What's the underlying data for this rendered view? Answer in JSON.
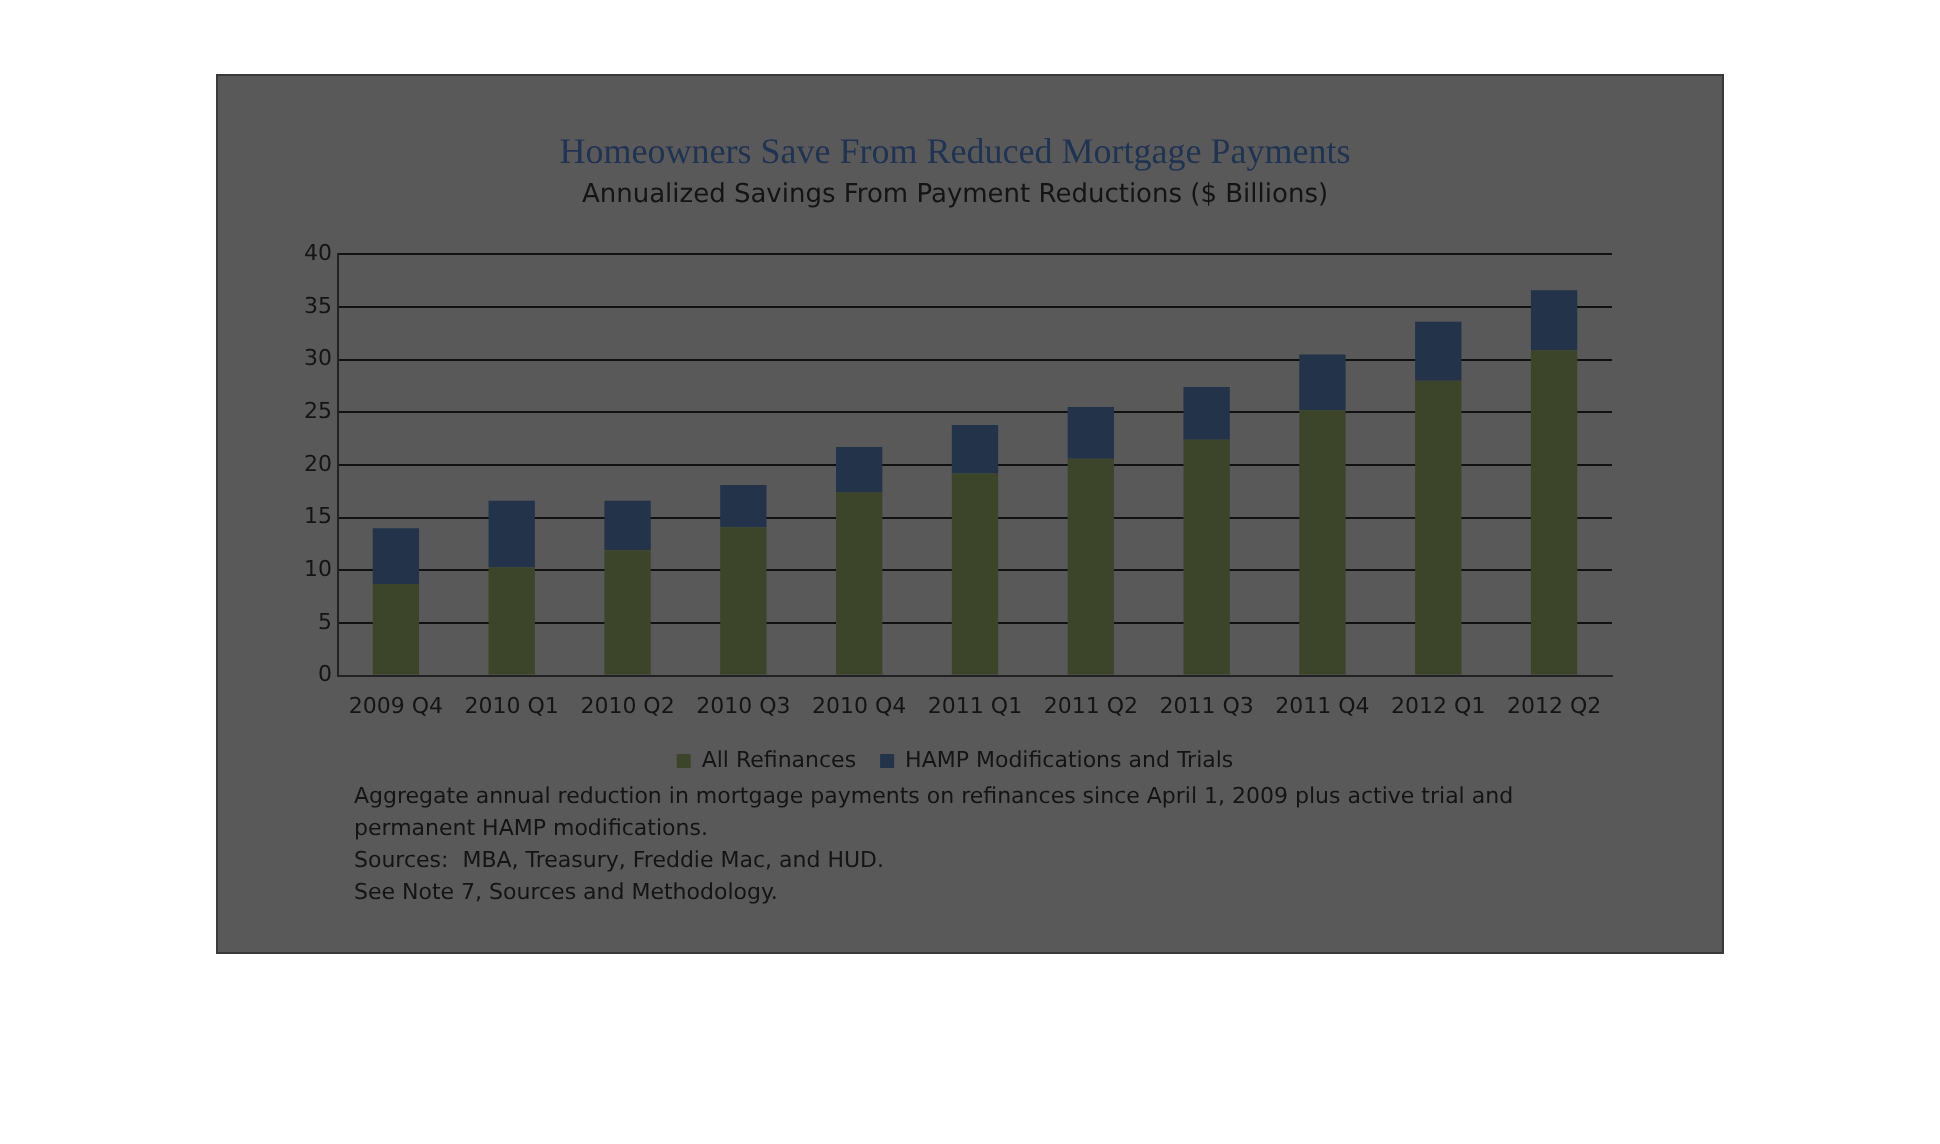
{
  "chart_data": {
    "type": "bar",
    "title": "Homeowners Save From Reduced Mortgage Payments",
    "subtitle": "Annualized Savings From Payment Reductions ($ Billions)",
    "categories": [
      "2009 Q4",
      "2010 Q1",
      "2010 Q2",
      "2010 Q3",
      "2010 Q4",
      "2011 Q1",
      "2011 Q2",
      "2011 Q3",
      "2011 Q4",
      "2012 Q1",
      "2012 Q2"
    ],
    "series": [
      {
        "name": "All Refinances",
        "color": "#3c4529",
        "values": [
          8.7,
          10.3,
          11.9,
          14.1,
          17.4,
          19.2,
          20.6,
          22.4,
          25.2,
          28.0,
          30.9
        ]
      },
      {
        "name": "HAMP Modifications and Trials",
        "color": "#22334a",
        "values": [
          5.3,
          6.3,
          4.7,
          4.0,
          4.3,
          4.6,
          4.9,
          5.0,
          5.3,
          5.6,
          5.7
        ]
      }
    ],
    "stacked": true,
    "ylim": [
      0,
      40
    ],
    "yticks": [
      0,
      5,
      10,
      15,
      20,
      25,
      30,
      35,
      40
    ],
    "grid": "y",
    "legend": "bottom",
    "annotations": [
      "Aggregate annual reduction in mortgage payments on refinances since April 1, 2009 plus active trial and permanent HAMP modifications.",
      "Sources:  MBA, Treasury, Freddie Mac, and HUD.",
      "See Note 7, Sources and Methodology."
    ]
  }
}
